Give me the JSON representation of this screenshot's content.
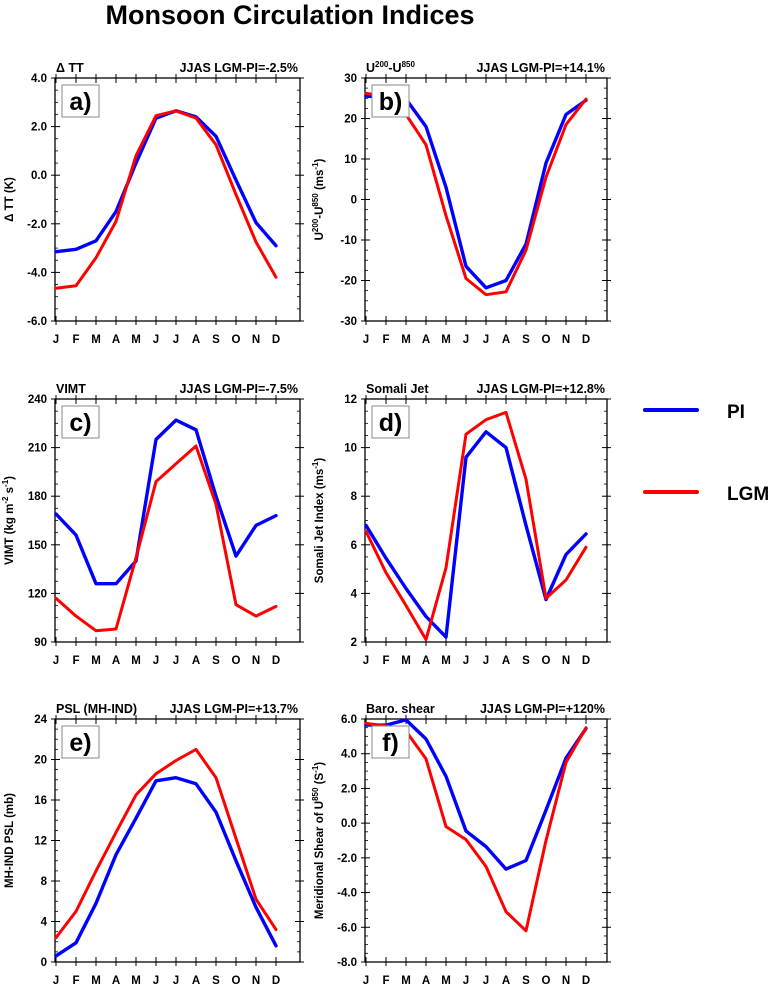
{
  "title": "Monsoon Circulation Indices",
  "legend": {
    "entries": [
      {
        "name": "PI",
        "color": "#0000ff"
      },
      {
        "name": "LGM",
        "color": "#ff0000"
      }
    ]
  },
  "chart_data": [
    {
      "type": "line",
      "panel_label": "a)",
      "title_left": "Δ TT",
      "title_right": "JJAS LGM-PI=-2.5%",
      "ylabel": "Δ TT (K)",
      "ylabel_parts": [
        {
          "t": "Δ TT (K)"
        }
      ],
      "x": [
        "J",
        "F",
        "M",
        "A",
        "M",
        "J",
        "J",
        "A",
        "S",
        "O",
        "N",
        "D"
      ],
      "ylim": [
        -6,
        4
      ],
      "yticks": [
        -6,
        -4,
        -2,
        0,
        2,
        4
      ],
      "ytick_labels": [
        "-6.0",
        "-4.0",
        "-2.0",
        "0.0",
        "2.0",
        "4.0"
      ],
      "series": [
        {
          "name": "PI",
          "values": [
            -3.15,
            -3.05,
            -2.7,
            -1.5,
            0.5,
            2.35,
            2.65,
            2.4,
            1.6,
            -0.2,
            -1.95,
            -2.9
          ]
        },
        {
          "name": "LGM",
          "values": [
            -4.65,
            -4.55,
            -3.4,
            -1.9,
            0.8,
            2.45,
            2.65,
            2.35,
            1.25,
            -0.8,
            -2.75,
            -4.2
          ]
        }
      ]
    },
    {
      "type": "line",
      "panel_label": "b)",
      "title_left": "U200-U850",
      "title_left_parts": [
        {
          "t": "U"
        },
        {
          "t": "200",
          "sup": true
        },
        {
          "t": "-U"
        },
        {
          "t": "850",
          "sup": true
        }
      ],
      "title_right": "JJAS LGM-PI=+14.1%",
      "ylabel": "U200-U850 (ms-1)",
      "ylabel_parts": [
        {
          "t": "U"
        },
        {
          "t": "200",
          "sup": true
        },
        {
          "t": "-U"
        },
        {
          "t": "850",
          "sup": true
        },
        {
          "t": " (ms"
        },
        {
          "t": "-1",
          "sup": true
        },
        {
          "t": ")"
        }
      ],
      "x": [
        "J",
        "F",
        "M",
        "A",
        "M",
        "J",
        "J",
        "A",
        "S",
        "O",
        "N",
        "D"
      ],
      "ylim": [
        -30,
        30
      ],
      "yticks": [
        -30,
        -20,
        -10,
        0,
        10,
        20,
        30
      ],
      "ytick_labels": [
        "-30",
        "-20",
        "-10",
        "0",
        "10",
        "20",
        "30"
      ],
      "series": [
        {
          "name": "PI",
          "values": [
            25.5,
            25.3,
            24.8,
            18,
            3,
            -16.5,
            -21.8,
            -20,
            -11,
            9,
            21,
            24.5
          ]
        },
        {
          "name": "LGM",
          "values": [
            26.2,
            25.5,
            21,
            13.5,
            -4,
            -19.5,
            -23.5,
            -22.8,
            -12.5,
            5.5,
            18.5,
            24.8
          ]
        }
      ]
    },
    {
      "type": "line",
      "panel_label": "c)",
      "title_left": "VIMT",
      "title_right": "JJAS LGM-PI=-7.5%",
      "ylabel": "VIMT (kg m-2 s-1)",
      "ylabel_parts": [
        {
          "t": "VIMT (kg m"
        },
        {
          "t": "-2",
          "sup": true
        },
        {
          "t": " s"
        },
        {
          "t": "-1",
          "sup": true
        },
        {
          "t": ")"
        }
      ],
      "x": [
        "J",
        "F",
        "M",
        "A",
        "M",
        "J",
        "J",
        "A",
        "S",
        "O",
        "N",
        "D"
      ],
      "ylim": [
        90,
        240
      ],
      "yticks": [
        90,
        120,
        150,
        180,
        210,
        240
      ],
      "ytick_labels": [
        "90",
        "120",
        "150",
        "180",
        "210",
        "240"
      ],
      "series": [
        {
          "name": "PI",
          "values": [
            169,
            156,
            126,
            126,
            140,
            215,
            227,
            221,
            180,
            143,
            162,
            168
          ]
        },
        {
          "name": "LGM",
          "values": [
            117,
            106,
            97,
            98,
            142,
            189,
            200,
            211,
            175,
            113,
            106,
            112
          ]
        }
      ]
    },
    {
      "type": "line",
      "panel_label": "d)",
      "title_left": "Somali Jet",
      "title_right": "JJAS LGM-PI=+12.8%",
      "ylabel": "Somali Jet Index (ms-1)",
      "ylabel_parts": [
        {
          "t": "Somali Jet Index (ms"
        },
        {
          "t": "-1",
          "sup": true
        },
        {
          "t": ")"
        }
      ],
      "x": [
        "J",
        "F",
        "M",
        "A",
        "M",
        "J",
        "J",
        "A",
        "S",
        "O",
        "N",
        "D"
      ],
      "ylim": [
        2,
        12
      ],
      "yticks": [
        2,
        4,
        6,
        8,
        10,
        12
      ],
      "ytick_labels": [
        "2",
        "4",
        "6",
        "8",
        "10",
        "12"
      ],
      "series": [
        {
          "name": "PI",
          "values": [
            6.8,
            5.45,
            4.2,
            3.05,
            2.2,
            9.6,
            10.65,
            10.0,
            6.8,
            3.75,
            5.6,
            6.45
          ]
        },
        {
          "name": "LGM",
          "values": [
            6.55,
            4.85,
            3.5,
            2.1,
            5.05,
            10.55,
            11.15,
            11.45,
            8.7,
            3.8,
            4.55,
            5.9
          ]
        }
      ]
    },
    {
      "type": "line",
      "panel_label": "e)",
      "title_left": "PSL (MH-IND)",
      "title_right": "JJAS LGM-PI=+13.7%",
      "ylabel": "MH-IND PSL (mb)",
      "ylabel_parts": [
        {
          "t": "MH-IND PSL (mb)"
        }
      ],
      "x": [
        "J",
        "F",
        "M",
        "A",
        "M",
        "J",
        "J",
        "A",
        "S",
        "O",
        "N",
        "D"
      ],
      "ylim": [
        0,
        24
      ],
      "yticks": [
        0,
        4,
        8,
        12,
        16,
        20,
        24
      ],
      "ytick_labels": [
        "0",
        "4",
        "8",
        "12",
        "16",
        "20",
        "24"
      ],
      "series": [
        {
          "name": "PI",
          "values": [
            0.6,
            1.9,
            5.8,
            10.6,
            14.2,
            17.9,
            18.2,
            17.6,
            14.8,
            10.0,
            5.4,
            1.6
          ]
        },
        {
          "name": "LGM",
          "values": [
            2.4,
            5.0,
            9.0,
            12.8,
            16.5,
            18.6,
            19.9,
            21.0,
            18.2,
            12.2,
            6.2,
            3.2
          ]
        }
      ]
    },
    {
      "type": "line",
      "panel_label": "f)",
      "title_left": "Baro. shear",
      "title_right": "JJAS LGM-PI=+120%",
      "ylabel": "Meridional Shear of U850 (S-1)",
      "ylabel_parts": [
        {
          "t": "Meridional Shear of U"
        },
        {
          "t": "850",
          "sup": true
        },
        {
          "t": " (S"
        },
        {
          "t": "-1",
          "sup": true
        },
        {
          "t": ")"
        }
      ],
      "x": [
        "J",
        "F",
        "M",
        "A",
        "M",
        "J",
        "J",
        "A",
        "S",
        "O",
        "N",
        "D"
      ],
      "ylim": [
        -8,
        6
      ],
      "yticks": [
        -8,
        -6,
        -4,
        -2,
        0,
        2,
        4,
        6
      ],
      "ytick_labels": [
        "-8.0",
        "-6.0",
        "-4.0",
        "-2.0",
        "0.0",
        "2.0",
        "4.0",
        "6.0"
      ],
      "series": [
        {
          "name": "PI",
          "values": [
            5.65,
            5.65,
            5.95,
            4.85,
            2.7,
            -0.45,
            -1.35,
            -2.65,
            -2.15,
            0.75,
            3.75,
            5.45
          ]
        },
        {
          "name": "LGM",
          "values": [
            5.75,
            5.6,
            5.3,
            3.7,
            -0.2,
            -0.95,
            -2.5,
            -5.1,
            -6.2,
            -1.0,
            3.5,
            5.5
          ]
        }
      ]
    }
  ]
}
